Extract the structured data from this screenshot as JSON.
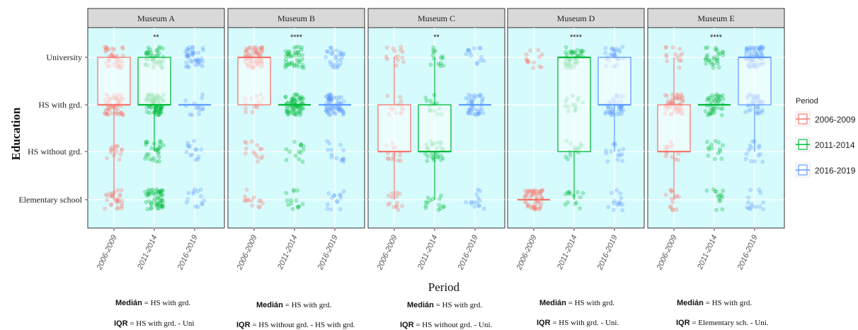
{
  "chart_data": {
    "type": "box",
    "xlabel": "Period",
    "ylabel": "Education",
    "y_levels": [
      "Elementary school",
      "HS without grd.",
      "HS with grd.",
      "University"
    ],
    "categories": [
      "2006-2009",
      "2011-2014",
      "2016-2019"
    ],
    "legend": {
      "title": "Period",
      "placement": "right",
      "entries": [
        {
          "name": "2006-2009",
          "color": "#f8766d"
        },
        {
          "name": "2011-2014",
          "color": "#00ba38"
        },
        {
          "name": "2016-2019",
          "color": "#619cff"
        }
      ]
    },
    "panel_background": "#d6fbfd",
    "grid": true,
    "panels": [
      {
        "name": "Museum A",
        "significance": "**",
        "boxes": [
          {
            "period": "2006-2009",
            "q1": "HS with grd.",
            "median": "HS with grd.",
            "q3": "University",
            "whisker_low": "Elementary school",
            "whisker_high": "University"
          },
          {
            "period": "2011-2014",
            "q1": "HS with grd.",
            "median": "HS with grd.",
            "q3": "University",
            "whisker_low": "HS without grd.",
            "whisker_high": "University"
          },
          {
            "period": "2016-2019",
            "q1": "HS with grd.",
            "median": "HS with grd.",
            "q3": "HS with grd.",
            "whisker_low": "HS with grd.",
            "whisker_high": "HS with grd."
          }
        ],
        "median_note": "HS with grd.",
        "iqr_note": "HS with grd. - Uni"
      },
      {
        "name": "Museum B",
        "significance": "****",
        "boxes": [
          {
            "period": "2006-2009",
            "q1": "HS with grd.",
            "median": "University",
            "q3": "University",
            "whisker_low": "HS with grd.",
            "whisker_high": "University"
          },
          {
            "period": "2011-2014",
            "q1": "HS with grd.",
            "median": "HS with grd.",
            "q3": "HS with grd.",
            "whisker_low": "HS with grd.",
            "whisker_high": "HS with grd."
          },
          {
            "period": "2016-2019",
            "q1": "HS with grd.",
            "median": "HS with grd.",
            "q3": "HS with grd.",
            "whisker_low": "HS with grd.",
            "whisker_high": "HS with grd."
          }
        ],
        "median_note": "HS with grd.",
        "iqr_note": "HS without grd. - HS with grd."
      },
      {
        "name": "Museum C",
        "significance": "**",
        "boxes": [
          {
            "period": "2006-2009",
            "q1": "HS without grd.",
            "median": "HS without grd.",
            "q3": "HS with grd.",
            "whisker_low": "Elementary school",
            "whisker_high": "University"
          },
          {
            "period": "2011-2014",
            "q1": "HS without grd.",
            "median": "HS without grd.",
            "q3": "HS with grd.",
            "whisker_low": "Elementary school",
            "whisker_high": "University"
          },
          {
            "period": "2016-2019",
            "q1": "HS with grd.",
            "median": "HS with grd.",
            "q3": "HS with grd.",
            "whisker_low": "HS with grd.",
            "whisker_high": "HS with grd."
          }
        ],
        "median_note": "HS with grd.",
        "iqr_note": "HS without grd. - Uni."
      },
      {
        "name": "Museum D",
        "significance": "****",
        "boxes": [
          {
            "period": "2006-2009",
            "q1": "Elementary school",
            "median": "Elementary school",
            "q3": "Elementary school",
            "whisker_low": "Elementary school",
            "whisker_high": "Elementary school"
          },
          {
            "period": "2011-2014",
            "q1": "HS without grd.",
            "median": "University",
            "q3": "University",
            "whisker_low": "Elementary school",
            "whisker_high": "University"
          },
          {
            "period": "2016-2019",
            "q1": "HS with grd.",
            "median": "HS with grd.",
            "q3": "University",
            "whisker_low": "HS without grd.",
            "whisker_high": "University"
          }
        ],
        "median_note": "HS with grd.",
        "iqr_note": "HS with grd. - Uni."
      },
      {
        "name": "Museum E",
        "significance": "****",
        "boxes": [
          {
            "period": "2006-2009",
            "q1": "HS without grd.",
            "median": "HS without grd.",
            "q3": "HS with grd.",
            "whisker_low": "Elementary school",
            "whisker_high": "University"
          },
          {
            "period": "2011-2014",
            "q1": "HS with grd.",
            "median": "HS with grd.",
            "q3": "HS with grd.",
            "whisker_low": "HS with grd.",
            "whisker_high": "HS with grd."
          },
          {
            "period": "2016-2019",
            "q1": "HS with grd.",
            "median": "University",
            "q3": "University",
            "whisker_low": "HS without grd.",
            "whisker_high": "University"
          }
        ],
        "median_note": "HS with grd.",
        "iqr_note": "Elementary sch. - Uni."
      }
    ],
    "jitter_density": [
      [
        [
          2,
          1,
          4,
          3
        ],
        [
          4,
          2,
          5,
          3
        ],
        [
          1,
          1,
          1,
          3
        ]
      ],
      [
        [
          1,
          1,
          1,
          5
        ],
        [
          1,
          1,
          5,
          3
        ],
        [
          1,
          1,
          5,
          2
        ]
      ],
      [
        [
          1,
          1,
          1,
          1
        ],
        [
          1,
          2,
          1,
          1
        ],
        [
          1,
          0,
          3,
          1
        ]
      ],
      [
        [
          4,
          0,
          0,
          1
        ],
        [
          1,
          1,
          1,
          3
        ],
        [
          1,
          1,
          3,
          2
        ]
      ],
      [
        [
          1,
          1,
          4,
          1
        ],
        [
          1,
          1,
          3,
          2
        ],
        [
          1,
          1,
          3,
          5
        ]
      ]
    ]
  },
  "notes": {
    "median_label": "Medián",
    "iqr_label": "IQR",
    "equals": "="
  }
}
